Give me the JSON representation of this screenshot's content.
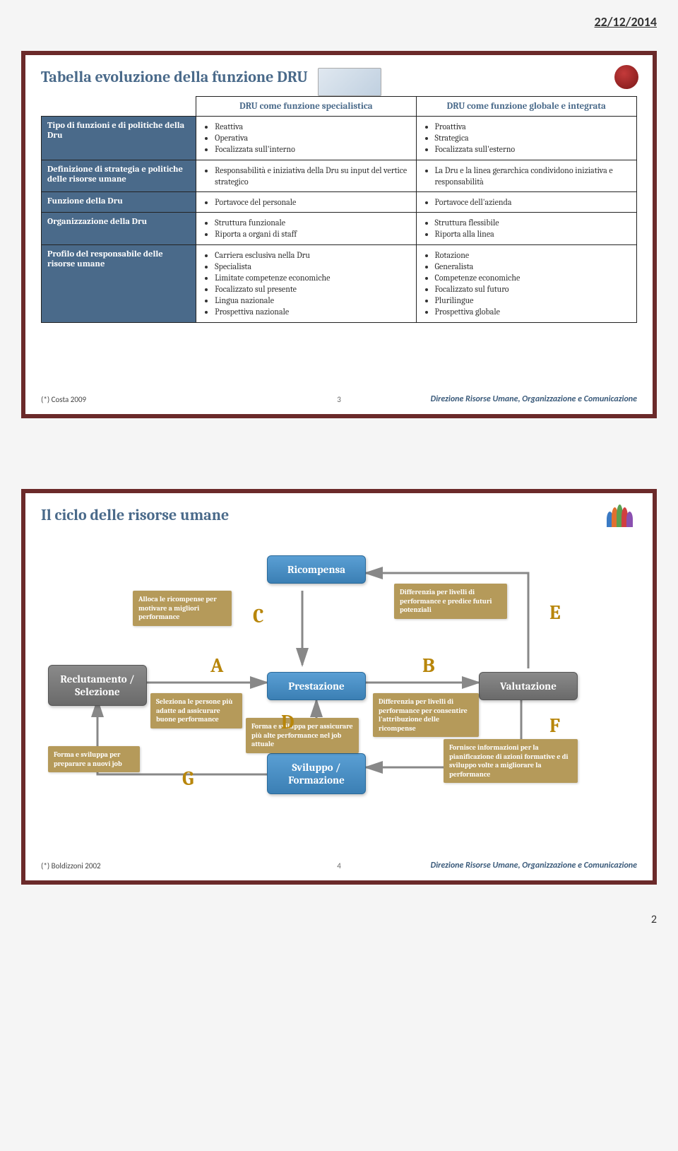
{
  "header_date": "22/12/2014",
  "page_number": "2",
  "footer_right": "Direzione Risorse Umane, Organizzazione e Comunicazione",
  "slide1": {
    "title": "Tabella evoluzione della funzione DRU",
    "col1": "DRU come funzione specialistica",
    "col2": "DRU come funzione globale e integrata",
    "rows": [
      {
        "h": "Tipo di funzioni e di politiche della Dru",
        "c1": [
          "Reattiva",
          "Operativa",
          "Focalizzata sull'interno"
        ],
        "c2": [
          "Proattiva",
          "Strategica",
          "Focalizzata sull'esterno"
        ]
      },
      {
        "h": "Definizione di strategia e politiche delle risorse umane",
        "c1": [
          "Responsabilità e iniziativa della Dru su input del vertice strategico"
        ],
        "c2": [
          "La Dru e la linea gerarchica condividono iniziativa e responsabilità"
        ]
      },
      {
        "h": "Funzione della Dru",
        "c1": [
          "Portavoce del personale"
        ],
        "c2": [
          "Portavoce dell'azienda"
        ]
      },
      {
        "h": "Organizzazione della Dru",
        "c1": [
          "Struttura funzionale",
          "Riporta a organi di staff"
        ],
        "c2": [
          "Struttura flessibile",
          "Riporta alla linea"
        ]
      },
      {
        "h": "Profilo del responsabile delle risorse umane",
        "c1": [
          "Carriera esclusiva nella Dru",
          "Specialista",
          "Limitate competenze economiche",
          "Focalizzato sul presente",
          "Lingua nazionale",
          "Prospettiva nazionale"
        ],
        "c2": [
          "Rotazione",
          "Generalista",
          "Competenze economiche",
          "Focalizzato sul futuro",
          "Plurilingue",
          "Prospettiva globale"
        ]
      }
    ],
    "footnote": "(*) Costa 2009",
    "slidenum": "3"
  },
  "slide2": {
    "title": "Il ciclo delle risorse umane",
    "nodes": {
      "ricompensa": "Ricompensa",
      "reclut": "Reclutamento / Selezione",
      "prest": "Prestazione",
      "valut": "Valutazione",
      "svil": "Sviluppo / Formazione"
    },
    "labels": {
      "alloca": "Alloca le ricompense per motivare a migliori performance",
      "diff_pot": "Differenzia per livelli di performance e predice futuri potenziali",
      "seleziona": "Seleziona le persone più adatte ad assicurare buone performance",
      "diff_ric": "Differenzia per livelli di performance per consentire l'attribuzione delle ricompense",
      "forma_alte": "Forma e sviluppa per assicurare più alte performance nel job attuale",
      "fornisce": "Fornisce informazioni per la pianificazione di azioni formative e di sviluppo volte a migliorare la performance",
      "forma_nuovi": "Forma e sviluppa per preparare a nuovi job"
    },
    "letters": {
      "A": "A",
      "B": "B",
      "C": "C",
      "D": "D",
      "E": "E",
      "F": "F",
      "G": "G"
    },
    "footnote": "(*) Boldizzoni 2002",
    "slidenum": "4"
  },
  "colors": {
    "border": "#6b2a2a",
    "title": "#4a6a8a",
    "rowhead_bg": "#4a6a8a",
    "node_blue": "#3b7fb4",
    "node_gray": "#6a6a6a",
    "label_bg": "#b59a5a",
    "letter": "#b8860b",
    "arrow": "#888888"
  }
}
